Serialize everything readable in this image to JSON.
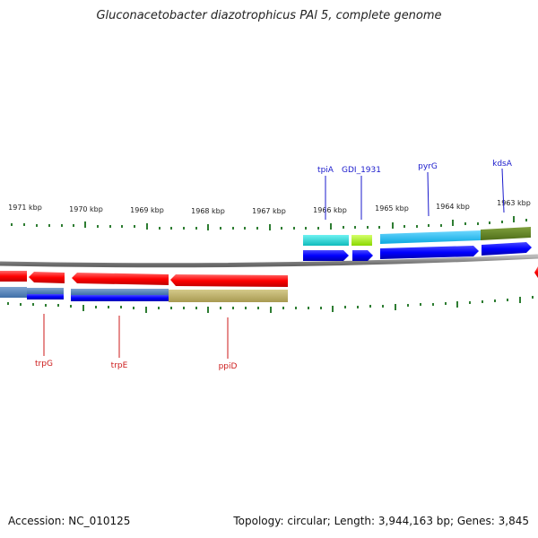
{
  "title": "Gluconacetobacter diazotrophicus PAl 5, complete genome",
  "footer": {
    "accession": "Accession: NC_010125",
    "topology": "Topology: circular; Length: 3,944,163 bp; Genes: 3,845"
  },
  "ticks": [
    "1971 kbp",
    "1970 kbp",
    "1969 kbp",
    "1968 kbp",
    "1967 kbp",
    "1966 kbp",
    "1965 kbp",
    "1964 kbp",
    "1963 kbp"
  ],
  "genes_top": [
    "tpiA",
    "GDI_1931",
    "pyrG",
    "kdsA"
  ],
  "genes_bottom": [
    "trpG",
    "trpE",
    "ppiD"
  ],
  "colors": {
    "forward_arrow": "#0000ee",
    "reverse_arrow": "#ee0000",
    "backbone": "#888888",
    "tick": "#2e7d32",
    "top_label": "#1a1acc",
    "bottom_label": "#cc1a1a"
  }
}
